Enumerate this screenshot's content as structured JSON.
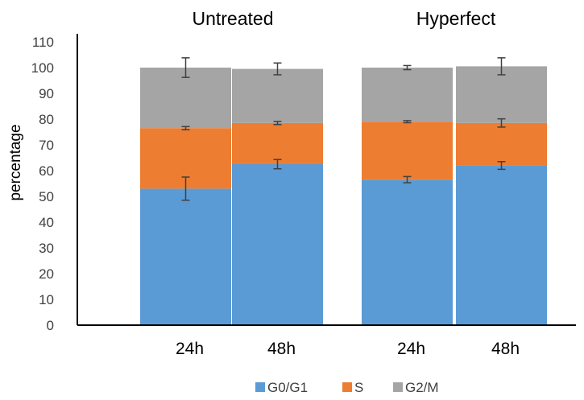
{
  "chart_data": {
    "type": "bar",
    "stacked": true,
    "group_labels": [
      "Untreated",
      "Hyperfect"
    ],
    "categories": [
      "24h",
      "48h",
      "24h",
      "48h"
    ],
    "category_group": [
      0,
      0,
      1,
      1
    ],
    "ylabel": "percentage",
    "xlabel": "",
    "ylim": [
      0,
      110
    ],
    "yticks": [
      0,
      10,
      20,
      30,
      40,
      50,
      60,
      70,
      80,
      90,
      100,
      110
    ],
    "grid": false,
    "legend_position": "bottom",
    "series": [
      {
        "name": "G0/G1",
        "color": "#5b9bd5",
        "values": [
          53,
          62.5,
          56.5,
          62
        ],
        "errors": [
          4.5,
          1.8,
          1.2,
          1.5
        ]
      },
      {
        "name": "S",
        "color": "#ed7d31",
        "values": [
          23.5,
          16,
          22.5,
          16.5
        ],
        "errors": [
          0.6,
          0.6,
          0.4,
          1.6
        ]
      },
      {
        "name": "G2/M",
        "color": "#a5a5a5",
        "values": [
          23.5,
          21,
          21,
          22
        ],
        "errors": [
          3.8,
          2.3,
          0.8,
          3.3
        ]
      }
    ]
  }
}
